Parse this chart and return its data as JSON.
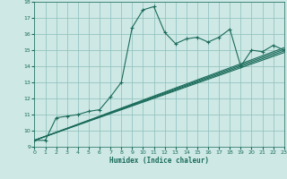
{
  "title": "",
  "xlabel": "Humidex (Indice chaleur)",
  "xlim": [
    0,
    23
  ],
  "ylim": [
    9,
    18
  ],
  "bg_color": "#cde8e5",
  "grid_color": "#8bbfbb",
  "line_color": "#1a6b5a",
  "x_ticks": [
    0,
    1,
    2,
    3,
    4,
    5,
    6,
    7,
    8,
    9,
    10,
    11,
    12,
    13,
    14,
    15,
    16,
    17,
    18,
    19,
    20,
    21,
    22,
    23
  ],
  "y_ticks": [
    9,
    10,
    11,
    12,
    13,
    14,
    15,
    16,
    17,
    18
  ],
  "jagged_x": [
    0,
    1,
    2,
    3,
    4,
    5,
    6,
    7,
    8,
    9,
    10,
    11,
    12,
    13,
    14,
    15,
    16,
    17,
    18,
    19,
    20,
    21,
    22,
    23
  ],
  "jagged_y": [
    9.4,
    9.4,
    10.8,
    10.9,
    11.0,
    11.2,
    11.3,
    12.1,
    13.0,
    16.4,
    17.5,
    17.7,
    16.1,
    15.4,
    15.7,
    15.8,
    15.5,
    15.8,
    16.3,
    14.0,
    15.0,
    14.9,
    15.3,
    15.0
  ],
  "line1_x": [
    0,
    23
  ],
  "line1_y": [
    9.4,
    14.85
  ],
  "line2_x": [
    0,
    23
  ],
  "line2_y": [
    9.4,
    14.95
  ],
  "line3_x": [
    0,
    23
  ],
  "line3_y": [
    9.4,
    15.05
  ],
  "line4_x": [
    0,
    23
  ],
  "line4_y": [
    9.4,
    15.15
  ]
}
